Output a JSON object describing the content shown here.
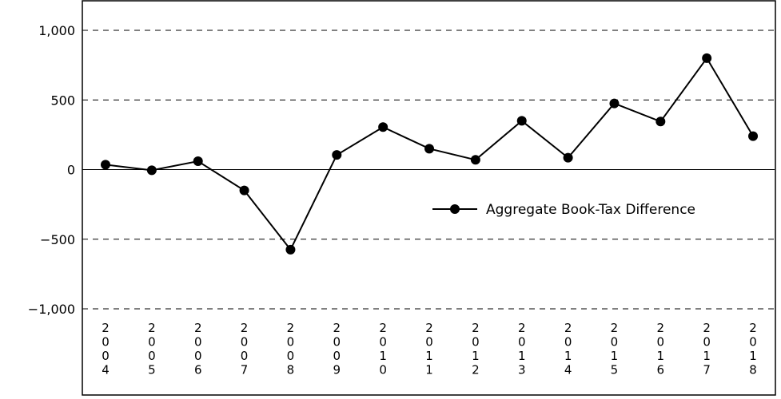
{
  "chart_data": {
    "type": "line",
    "title": "",
    "xlabel": "",
    "ylabel": "",
    "categories": [
      "2004",
      "2005",
      "2006",
      "2007",
      "2008",
      "2009",
      "2010",
      "2011",
      "2012",
      "2013",
      "2014",
      "2015",
      "2016",
      "2017",
      "2018"
    ],
    "series": [
      {
        "name": "Aggregate Book-Tax Difference",
        "values": [
          35,
          -5,
          60,
          -150,
          -575,
          105,
          305,
          150,
          70,
          350,
          85,
          475,
          345,
          800,
          240
        ]
      }
    ],
    "ylim": [
      -1000,
      1000
    ],
    "yticks": [
      1000,
      500,
      0,
      -500,
      -1000
    ],
    "ytick_labels": [
      "1,000",
      "500",
      "0",
      "−500",
      "−1,000"
    ],
    "xtick_labels_vertical": true,
    "grid": "horizontal dashed",
    "legend_position": "right-middle",
    "colors": {
      "line": "#000000",
      "grid": "#000000",
      "text": "#000000"
    }
  }
}
